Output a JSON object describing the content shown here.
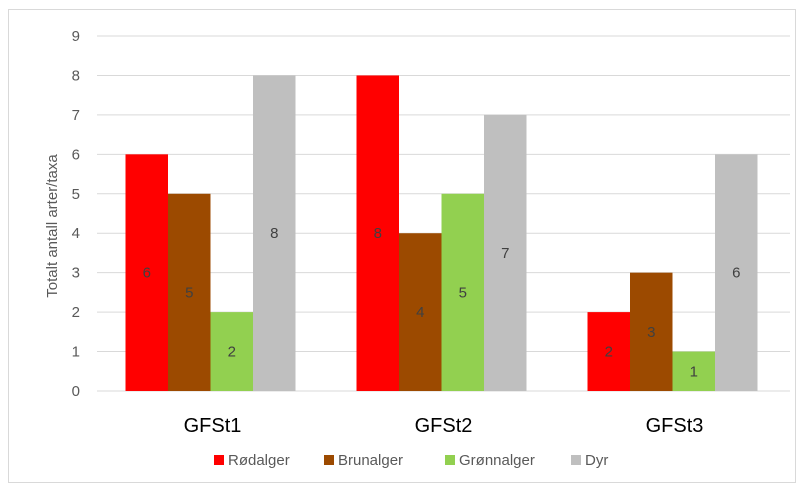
{
  "chart_data": {
    "type": "bar",
    "title": "",
    "xlabel": "",
    "ylabel": "Totalt antall arter/taxa",
    "ylim": [
      0,
      9
    ],
    "yticks": [
      0,
      1,
      2,
      3,
      4,
      5,
      6,
      7,
      8,
      9
    ],
    "grid": true,
    "legend_position": "bottom",
    "categories": [
      "GFSt1",
      "GFSt2",
      "GFSt3"
    ],
    "series": [
      {
        "name": "Rødalger",
        "color": "#ff0000",
        "values": [
          6,
          8,
          2
        ]
      },
      {
        "name": "Brunalger",
        "color": "#9c4a00",
        "values": [
          5,
          4,
          3
        ]
      },
      {
        "name": "Grønnalger",
        "color": "#92d050",
        "values": [
          2,
          5,
          1
        ]
      },
      {
        "name": "Dyr",
        "color": "#bfbfbf",
        "values": [
          8,
          7,
          6
        ]
      }
    ],
    "data_labels": true
  }
}
